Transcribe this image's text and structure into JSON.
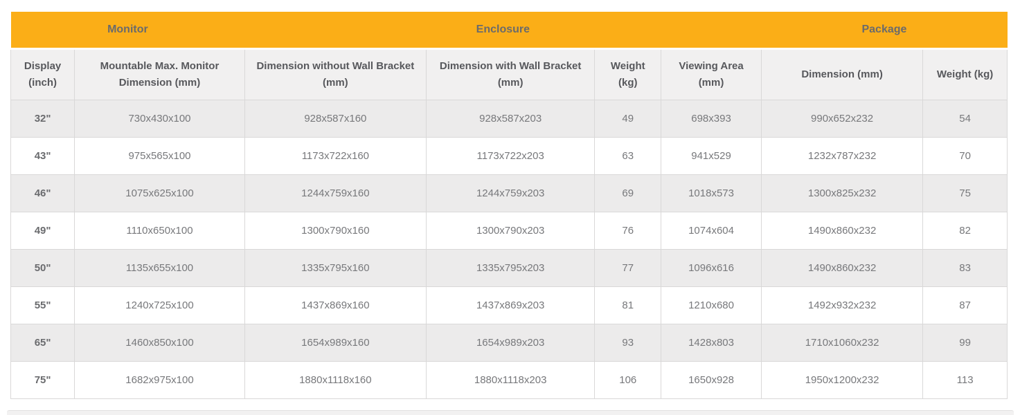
{
  "table": {
    "groups": [
      {
        "label": "Monitor",
        "colspan": 2
      },
      {
        "label": "Enclosure",
        "colspan": 4
      },
      {
        "label": "Package",
        "colspan": 2
      }
    ],
    "columns": [
      "Display (inch)",
      "Mountable Max. Monitor Dimension (mm)",
      "Dimension without Wall Bracket (mm)",
      "Dimension with Wall Bracket (mm)",
      "Weight (kg)",
      "Viewing Area (mm)",
      "Dimension (mm)",
      "Weight (kg)"
    ],
    "column_widths_pct": [
      6.4,
      17.05,
      18.2,
      16.9,
      6.65,
      10.05,
      16.2,
      8.45
    ],
    "rows": [
      [
        "32\"",
        "730x430x100",
        "928x587x160",
        "928x587x203",
        "49",
        "698x393",
        "990x652x232",
        "54"
      ],
      [
        "43\"",
        "975x565x100",
        "1173x722x160",
        "1173x722x203",
        "63",
        "941x529",
        "1232x787x232",
        "70"
      ],
      [
        "46\"",
        "1075x625x100",
        "1244x759x160",
        "1244x759x203",
        "69",
        "1018x573",
        "1300x825x232",
        "75"
      ],
      [
        "49\"",
        "1110x650x100",
        "1300x790x160",
        "1300x790x203",
        "76",
        "1074x604",
        "1490x860x232",
        "82"
      ],
      [
        "50\"",
        "1135x655x100",
        "1335x795x160",
        "1335x795x203",
        "77",
        "1096x616",
        "1490x860x232",
        "83"
      ],
      [
        "55\"",
        "1240x725x100",
        "1437x869x160",
        "1437x869x203",
        "81",
        "1210x680",
        "1492x932x232",
        "87"
      ],
      [
        "65\"",
        "1460x850x100",
        "1654x989x160",
        "1654x989x203",
        "93",
        "1428x803",
        "1710x1060x232",
        "99"
      ],
      [
        "75\"",
        "1682x975x100",
        "1880x1118x160",
        "1880x1118x203",
        "106",
        "1650x928",
        "1950x1200x232",
        "113"
      ]
    ]
  },
  "colors": {
    "header_orange": "#FBAE17",
    "stripe_gray": "#ECEBEB",
    "subheader_gray": "#F1F0F0",
    "border_gray": "#D9D8D8",
    "cell_text": "#77787B",
    "header_text": "#57585C"
  }
}
